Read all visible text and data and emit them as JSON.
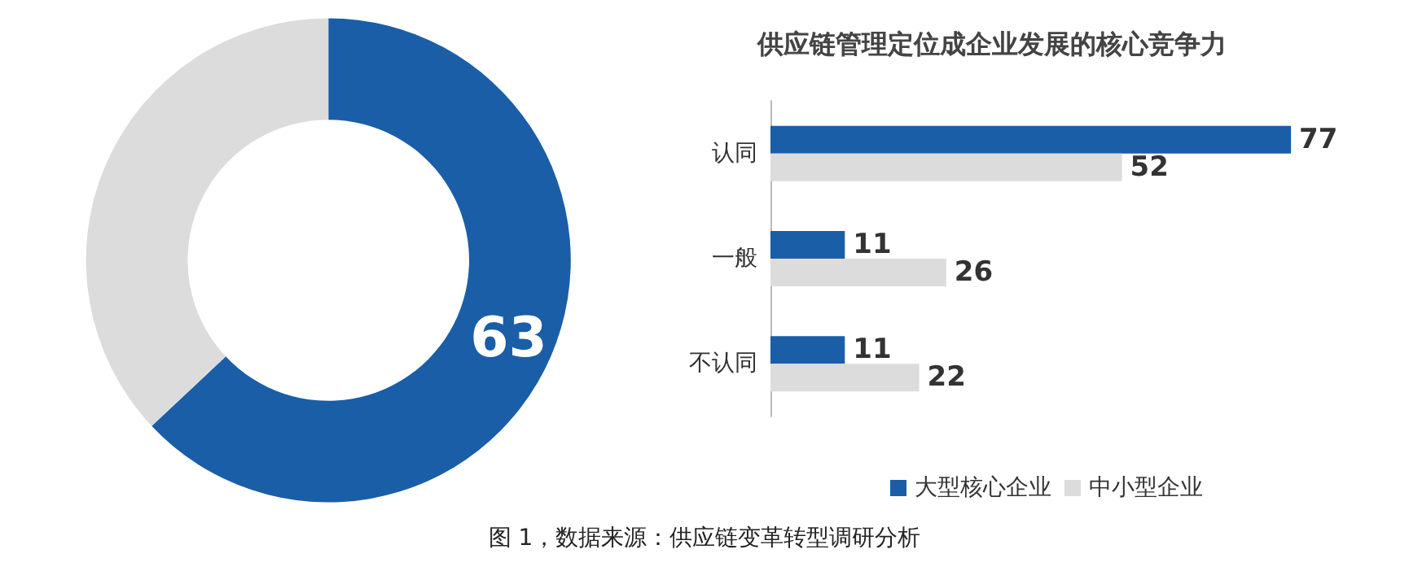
{
  "chart_data": [
    {
      "type": "donut",
      "categories": [
        null,
        null
      ],
      "values": [
        63,
        37
      ],
      "colors": [
        "#1a5ea8",
        "#dcdcdc"
      ],
      "value_labels": [
        "63",
        null
      ],
      "annotations": [
        "图 1，数据来源：供应链变革转型调研分析"
      ]
    },
    {
      "type": "bar",
      "orientation": "horizontal",
      "title": "供应链管理定位成企业发展的核心竞争力",
      "categories": [
        "认同",
        "一般",
        "不认同"
      ],
      "series": [
        {
          "name": "大型核心企业",
          "color": "#1a5ea8",
          "values": [
            77,
            11,
            11
          ]
        },
        {
          "name": "中小型企业",
          "color": "#dcdcdc",
          "values": [
            52,
            26,
            22
          ]
        }
      ],
      "data_labels": true,
      "legend": "bottom",
      "tick_labels": "y"
    }
  ]
}
